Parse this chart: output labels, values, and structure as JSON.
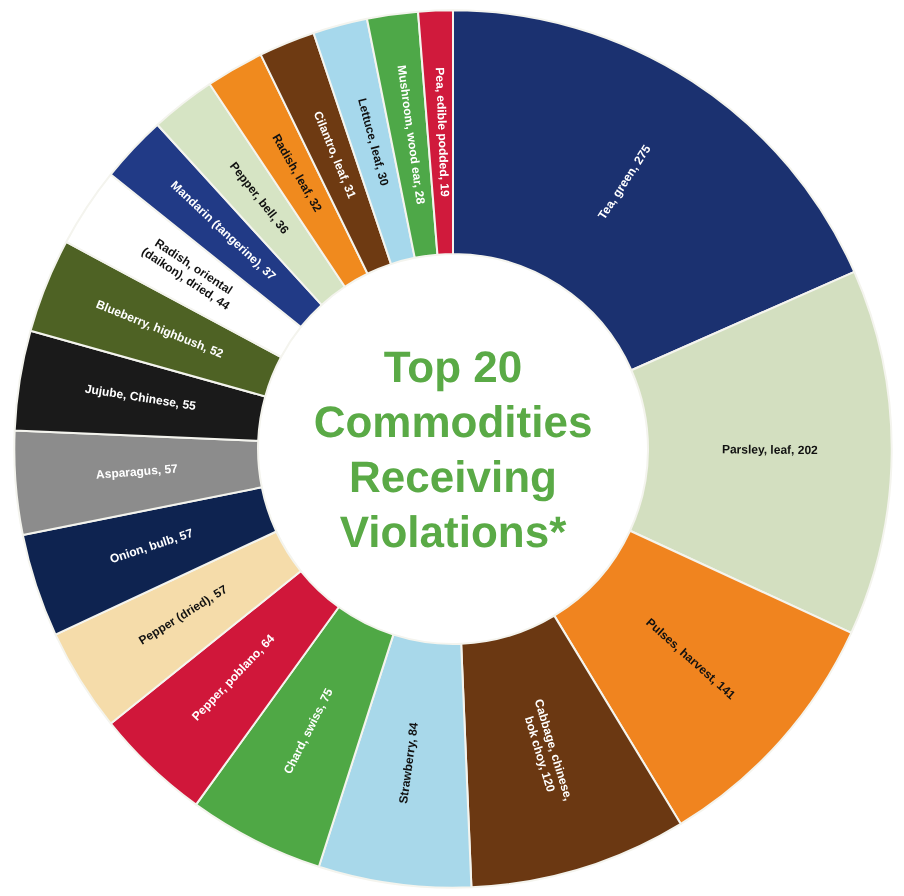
{
  "chart_data": {
    "type": "donut",
    "title": "Top 20\nCommodities\nReceiving\nViolations*",
    "categories": [
      "Tea, green, 275",
      "Parsley, leaf, 202",
      "Pulses, harvest, 141",
      "Cabbage, chinese, bok choy, 120",
      "Strawberry, 84",
      "Chard, swiss, 75",
      "Pepper, poblano, 64",
      "Pepper (dried), 57",
      "Onion, bulb, 57",
      "Asparagus, 57",
      "Jujube, Chinese, 55",
      "Blueberry, highbush, 52",
      "Radish, oriental (daikon), dried, 44",
      "Mandarin (tangerine), 37",
      "Pepper, bell, 36",
      "Radish, leaf, 32",
      "Cilantro, leaf, 31",
      "Lettuce, leaf, 30",
      "Mushroom, wood ear, 28",
      "Pea, edible podded, 19"
    ],
    "values": [
      275,
      202,
      141,
      120,
      84,
      75,
      64,
      57,
      57,
      57,
      55,
      52,
      44,
      37,
      36,
      32,
      31,
      30,
      28,
      19
    ],
    "colors": [
      "#1b3170",
      "#d3dfc0",
      "#f0841f",
      "#6b3812",
      "#a8d8ea",
      "#4fa845",
      "#d0173a",
      "#f5dcaa",
      "#0e2350",
      "#8c8c8c",
      "#1a1a1a",
      "#4e6224",
      "#ffffff",
      "#213a86",
      "#d6e4c4",
      "#f08a1e",
      "#6e3a12",
      "#a6d8ec",
      "#4ea848",
      "#d01a3c"
    ]
  }
}
